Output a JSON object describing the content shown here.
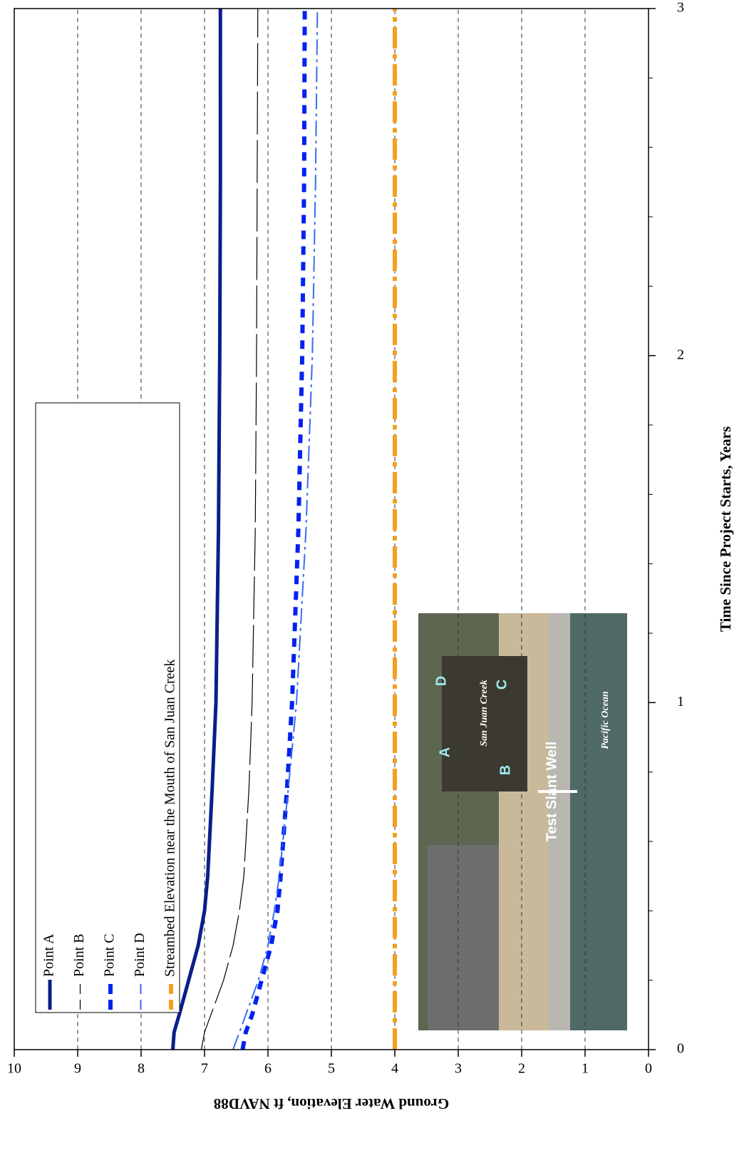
{
  "chart_data": {
    "type": "line",
    "xlabel": "Time Since Project Starts, Years",
    "ylabel": "Ground Water Elevation, ft NAVD88",
    "x": [
      0,
      0.05,
      0.1,
      0.2,
      0.3,
      0.4,
      0.5,
      0.75,
      1,
      1.5,
      2,
      2.5,
      3
    ],
    "series": [
      {
        "name": "Point A",
        "color": "#0b1e8c",
        "width": 5,
        "dash": "none",
        "values": [
          7.5,
          7.48,
          7.4,
          7.25,
          7.1,
          7.0,
          6.95,
          6.88,
          6.82,
          6.78,
          6.76,
          6.75,
          6.75
        ]
      },
      {
        "name": "Point B",
        "color": "#000000",
        "width": 1.2,
        "dash": "60 8",
        "values": [
          7.05,
          7.0,
          6.9,
          6.7,
          6.55,
          6.45,
          6.38,
          6.3,
          6.25,
          6.2,
          6.18,
          6.17,
          6.16
        ]
      },
      {
        "name": "Point C",
        "color": "#0022ee",
        "width": 6,
        "dash": "12 10",
        "values": [
          6.4,
          6.35,
          6.25,
          6.1,
          5.95,
          5.85,
          5.8,
          5.7,
          5.62,
          5.52,
          5.46,
          5.43,
          5.42
        ]
      },
      {
        "name": "Point D",
        "color": "#3a6cf0",
        "width": 2,
        "dash": "22 6 4 6",
        "values": [
          6.55,
          6.45,
          6.35,
          6.15,
          6.0,
          5.9,
          5.82,
          5.68,
          5.55,
          5.4,
          5.3,
          5.25,
          5.22
        ]
      },
      {
        "name": "Streambed Elevation near the Mouth of San Juan Creek",
        "color": "#f5a020",
        "width": 6,
        "dash": "30 8 6 8",
        "values": [
          4,
          4,
          4,
          4,
          4,
          4,
          4,
          4,
          4,
          4,
          4,
          4,
          4
        ]
      }
    ],
    "xlim": [
      0,
      3
    ],
    "xticks": [
      0,
      1,
      2,
      3
    ],
    "ylim": [
      0,
      10
    ],
    "yticks": [
      0,
      1,
      2,
      3,
      4,
      5,
      6,
      7,
      8,
      9,
      10
    ],
    "grid": true,
    "inset_labels": [
      "A",
      "B",
      "C",
      "D",
      "San Juan Creek",
      "Pacific Ocean",
      "Test Slant Well"
    ]
  }
}
